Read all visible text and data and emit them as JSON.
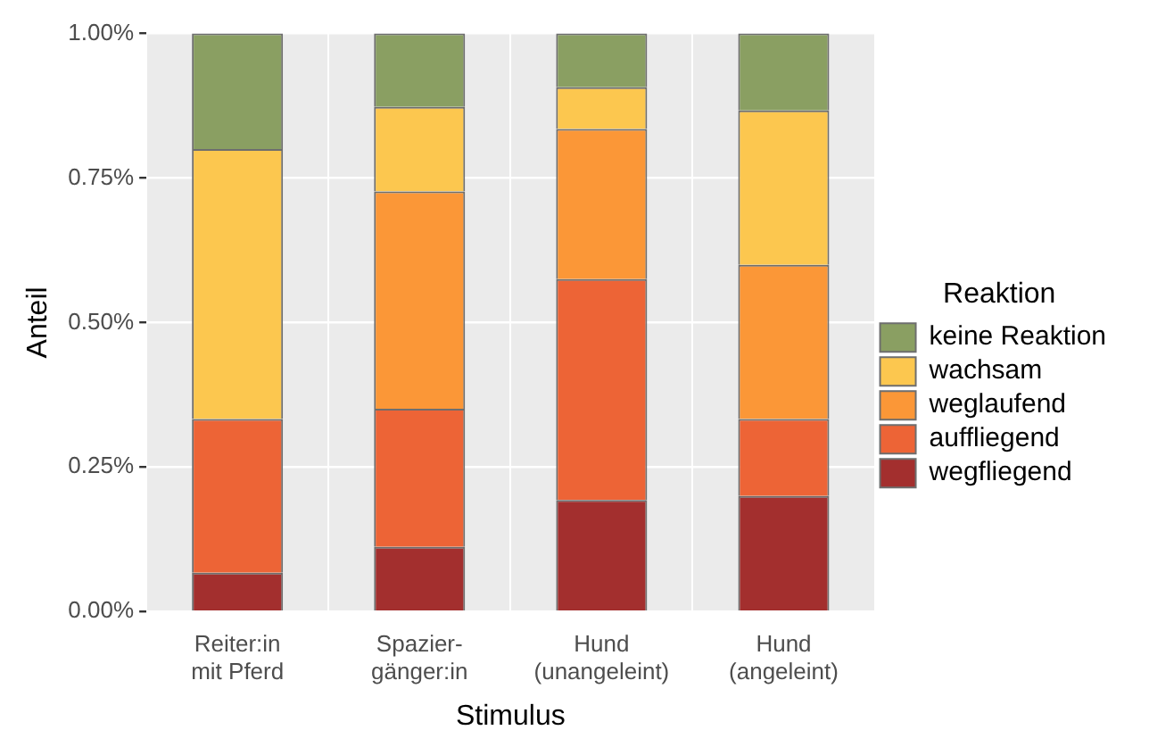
{
  "chart_data": {
    "type": "bar",
    "stacked": true,
    "xlabel": "Stimulus",
    "ylabel": "Anteil",
    "legend_title": "Reaktion",
    "legend": "right",
    "grid": true,
    "categories": [
      "Reiter:in\nmit Pferd",
      "Spazier-\ngänger:in",
      "Hund\n(unangeleint)",
      "Hund\n(angeleint)"
    ],
    "ylim": [
      0,
      1
    ],
    "yticks": [
      {
        "value": 0,
        "label": "0.00%"
      },
      {
        "value": 0.25,
        "label": "0.25%"
      },
      {
        "value": 0.5,
        "label": "0.50%"
      },
      {
        "value": 0.75,
        "label": "0.75%"
      },
      {
        "value": 1,
        "label": "1.00%"
      }
    ],
    "series": [
      {
        "name": "wegfliegend",
        "color": "#a32f2e",
        "values": [
          0.067,
          0.112,
          0.193,
          0.2
        ]
      },
      {
        "name": "auffliegend",
        "color": "#ed6436",
        "values": [
          0.266,
          0.239,
          0.382,
          0.133
        ]
      },
      {
        "name": "weglaufend",
        "color": "#fb9737",
        "values": [
          0,
          0.376,
          0.26,
          0.267
        ]
      },
      {
        "name": "wachsam",
        "color": "#fcc74f",
        "values": [
          0.467,
          0.146,
          0.072,
          0.267
        ]
      },
      {
        "name": "keine Reaktion",
        "color": "#8a9f62",
        "values": [
          0.2,
          0.127,
          0.093,
          0.133
        ]
      }
    ]
  }
}
